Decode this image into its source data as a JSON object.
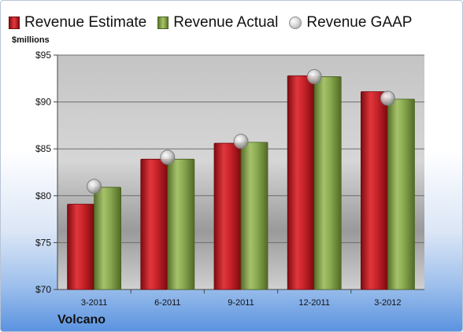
{
  "legend": {
    "estimate": "Revenue Estimate",
    "actual": "Revenue Actual",
    "gaap": "Revenue GAAP"
  },
  "units_label": "$millions",
  "company": "Volcano",
  "colors": {
    "estimate": "#c81e25",
    "actual": "#8aaa4e",
    "gaap": "#c8c8c8"
  },
  "chart_data": {
    "type": "bar",
    "categories": [
      "3-2011",
      "6-2011",
      "9-2011",
      "12-2011",
      "3-2012"
    ],
    "series": [
      {
        "name": "Revenue Estimate",
        "values": [
          79.1,
          83.9,
          85.6,
          92.8,
          91.1
        ]
      },
      {
        "name": "Revenue Actual",
        "values": [
          80.9,
          83.9,
          85.7,
          92.7,
          90.3
        ]
      },
      {
        "name": "Revenue GAAP",
        "values": [
          81.0,
          84.1,
          85.8,
          92.7,
          90.4
        ]
      }
    ],
    "ylim": [
      70,
      95
    ],
    "yticks": [
      70,
      75,
      80,
      85,
      90,
      95
    ],
    "ytick_labels": [
      "$70",
      "$75",
      "$80",
      "$85",
      "$90",
      "$95"
    ],
    "ylabel": "$millions",
    "grid": true,
    "legend_position": "top"
  }
}
